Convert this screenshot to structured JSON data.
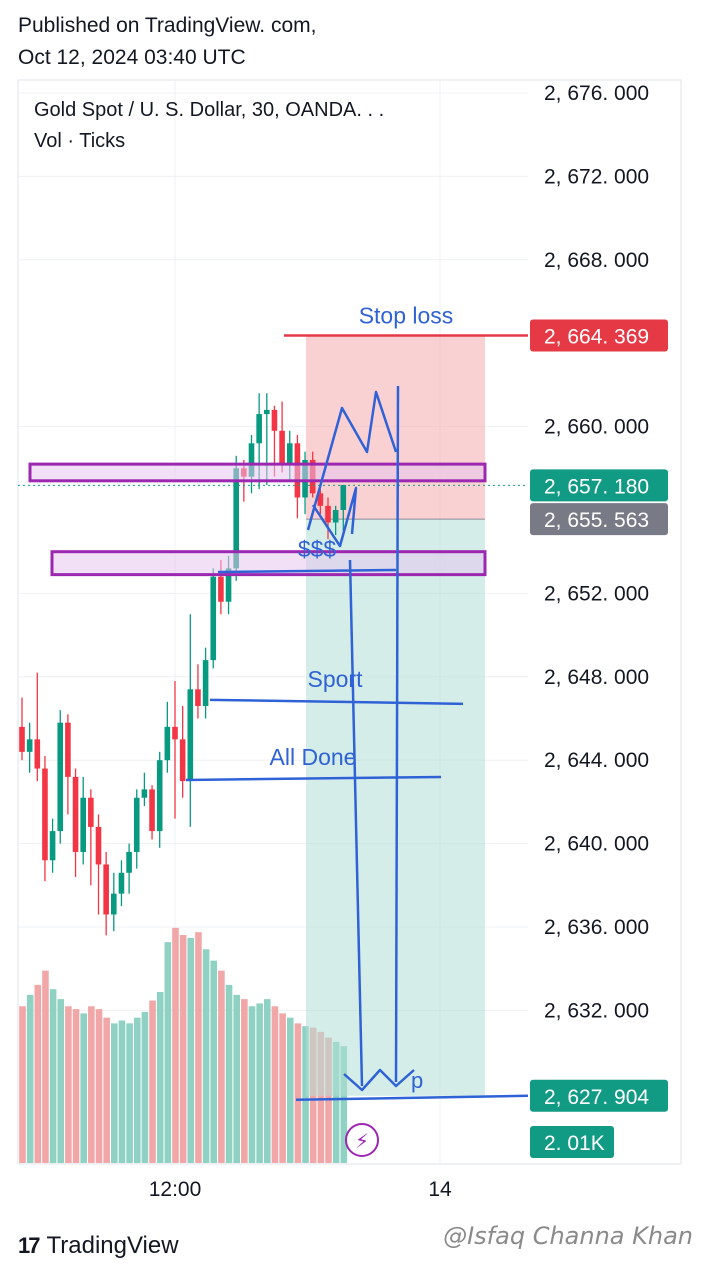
{
  "header": {
    "line1": "Published on TradingView. com,",
    "line2": "Oct 12,  2024 03:40 UTC"
  },
  "legend": {
    "symbol": "Gold Spot / U. S.  Dollar,  30,  OANDA. . .",
    "volume": "Vol · Ticks"
  },
  "chart_data": {
    "type": "candlestick",
    "ylim": [
      2624,
      2678
    ],
    "y_ticks": [
      {
        "value": 2676,
        "label": "2, 676. 000"
      },
      {
        "value": 2672,
        "label": "2, 672. 000"
      },
      {
        "value": 2668,
        "label": "2, 668. 000"
      },
      {
        "value": 2660,
        "label": "2, 660. 000"
      },
      {
        "value": 2652,
        "label": "2, 652. 000"
      },
      {
        "value": 2648,
        "label": "2, 648. 000"
      },
      {
        "value": 2644,
        "label": "2, 644. 000"
      },
      {
        "value": 2640,
        "label": "2, 640. 000"
      },
      {
        "value": 2636,
        "label": "2, 636. 000"
      },
      {
        "value": 2632,
        "label": "2, 632. 000"
      }
    ],
    "x_ticks": [
      "12:00",
      "14"
    ],
    "price_tags": [
      {
        "value": 2664.369,
        "label": "2, 664. 369",
        "color": "#e53945"
      },
      {
        "value": 2657.18,
        "label": "2, 657. 180",
        "color": "#129b84"
      },
      {
        "value": 2655.563,
        "label": "2, 655. 563",
        "color": "#787b86"
      },
      {
        "value": 2627.904,
        "label": "2, 627. 904",
        "color": "#129b84"
      }
    ],
    "volume_tag": {
      "label": "2. 01K",
      "color": "#129b84"
    },
    "candles": [
      {
        "o": 2645.6,
        "h": 2647.0,
        "l": 2644.0,
        "c": 2644.4
      },
      {
        "o": 2644.4,
        "h": 2645.8,
        "l": 2643.4,
        "c": 2645.0
      },
      {
        "o": 2645.0,
        "h": 2648.2,
        "l": 2643.0,
        "c": 2643.6
      },
      {
        "o": 2643.6,
        "h": 2644.2,
        "l": 2638.2,
        "c": 2639.2
      },
      {
        "o": 2639.2,
        "h": 2641.2,
        "l": 2638.6,
        "c": 2640.6
      },
      {
        "o": 2640.6,
        "h": 2646.4,
        "l": 2640.0,
        "c": 2645.8
      },
      {
        "o": 2645.8,
        "h": 2646.2,
        "l": 2641.4,
        "c": 2643.2
      },
      {
        "o": 2643.2,
        "h": 2643.6,
        "l": 2638.4,
        "c": 2639.6
      },
      {
        "o": 2639.6,
        "h": 2643.2,
        "l": 2639.0,
        "c": 2642.2
      },
      {
        "o": 2642.2,
        "h": 2642.6,
        "l": 2638.0,
        "c": 2640.8
      },
      {
        "o": 2640.8,
        "h": 2641.4,
        "l": 2636.6,
        "c": 2639.0
      },
      {
        "o": 2639.0,
        "h": 2639.6,
        "l": 2635.6,
        "c": 2636.6
      },
      {
        "o": 2636.6,
        "h": 2638.6,
        "l": 2635.8,
        "c": 2637.6
      },
      {
        "o": 2637.6,
        "h": 2639.2,
        "l": 2637.0,
        "c": 2638.6
      },
      {
        "o": 2638.6,
        "h": 2640.0,
        "l": 2637.6,
        "c": 2639.6
      },
      {
        "o": 2639.6,
        "h": 2642.6,
        "l": 2638.8,
        "c": 2642.2
      },
      {
        "o": 2642.2,
        "h": 2643.4,
        "l": 2641.8,
        "c": 2642.6
      },
      {
        "o": 2642.6,
        "h": 2642.8,
        "l": 2640.2,
        "c": 2640.6
      },
      {
        "o": 2640.6,
        "h": 2644.4,
        "l": 2639.8,
        "c": 2644.0
      },
      {
        "o": 2644.0,
        "h": 2646.8,
        "l": 2643.4,
        "c": 2645.6
      },
      {
        "o": 2645.6,
        "h": 2647.8,
        "l": 2641.2,
        "c": 2645.0
      },
      {
        "o": 2645.0,
        "h": 2646.6,
        "l": 2642.2,
        "c": 2643.0
      },
      {
        "o": 2643.0,
        "h": 2651.0,
        "l": 2640.8,
        "c": 2647.4
      },
      {
        "o": 2647.4,
        "h": 2648.6,
        "l": 2646.0,
        "c": 2646.6
      },
      {
        "o": 2646.6,
        "h": 2649.4,
        "l": 2646.0,
        "c": 2648.8
      },
      {
        "o": 2648.8,
        "h": 2653.2,
        "l": 2648.4,
        "c": 2652.8
      },
      {
        "o": 2652.8,
        "h": 2653.6,
        "l": 2651.0,
        "c": 2651.6
      },
      {
        "o": 2651.6,
        "h": 2653.8,
        "l": 2651.0,
        "c": 2653.2
      },
      {
        "o": 2653.2,
        "h": 2658.6,
        "l": 2652.6,
        "c": 2658.0
      },
      {
        "o": 2658.0,
        "h": 2658.4,
        "l": 2656.4,
        "c": 2657.6
      },
      {
        "o": 2657.6,
        "h": 2659.6,
        "l": 2656.8,
        "c": 2659.2
      },
      {
        "o": 2659.2,
        "h": 2661.6,
        "l": 2657.0,
        "c": 2660.6
      },
      {
        "o": 2660.6,
        "h": 2661.6,
        "l": 2657.2,
        "c": 2660.8
      },
      {
        "o": 2660.8,
        "h": 2661.0,
        "l": 2657.6,
        "c": 2659.8
      },
      {
        "o": 2659.8,
        "h": 2661.2,
        "l": 2657.8,
        "c": 2658.2
      },
      {
        "o": 2658.2,
        "h": 2659.8,
        "l": 2657.4,
        "c": 2659.2
      },
      {
        "o": 2659.2,
        "h": 2659.6,
        "l": 2655.6,
        "c": 2656.6
      },
      {
        "o": 2656.6,
        "h": 2658.8,
        "l": 2655.8,
        "c": 2658.4
      },
      {
        "o": 2658.4,
        "h": 2658.8,
        "l": 2656.6,
        "c": 2656.8
      },
      {
        "o": 2656.8,
        "h": 2657.0,
        "l": 2655.8,
        "c": 2656.2
      },
      {
        "o": 2656.2,
        "h": 2656.6,
        "l": 2654.6,
        "c": 2655.4
      },
      {
        "o": 2655.4,
        "h": 2656.2,
        "l": 2654.8,
        "c": 2656.0
      },
      {
        "o": 2656.0,
        "h": 2657.2,
        "l": 2655.0,
        "c": 2657.2
      }
    ],
    "volume": [
      1.3,
      1.38,
      1.45,
      1.55,
      1.42,
      1.35,
      1.3,
      1.28,
      1.25,
      1.3,
      1.28,
      1.22,
      1.18,
      1.2,
      1.18,
      1.22,
      1.26,
      1.34,
      1.4,
      1.75,
      1.85,
      1.8,
      1.78,
      1.82,
      1.7,
      1.62,
      1.55,
      1.45,
      1.38,
      1.35,
      1.3,
      1.32,
      1.35,
      1.3,
      1.25,
      1.22,
      1.18,
      1.16,
      1.15,
      1.12,
      1.08,
      1.05,
      1.02
    ],
    "annotations": {
      "stop_loss_label": "Stop loss",
      "stop_loss_price": 2664.369,
      "entry_price": 2655.563,
      "target_price": 2627.904,
      "liquidity_label": "$$$",
      "sport_label": "Sport",
      "sport_price": 2646.8,
      "all_done_label": "All Done",
      "all_done_price": 2643.1,
      "tp_label": "p",
      "upper_zone": [
        2657.4,
        2658.2
      ],
      "lower_zone": [
        2652.9,
        2654.0
      ]
    }
  },
  "footer": {
    "brand": "TradingView",
    "brand_mark": "17",
    "watermark": "@Isfaq Channa Khan"
  }
}
